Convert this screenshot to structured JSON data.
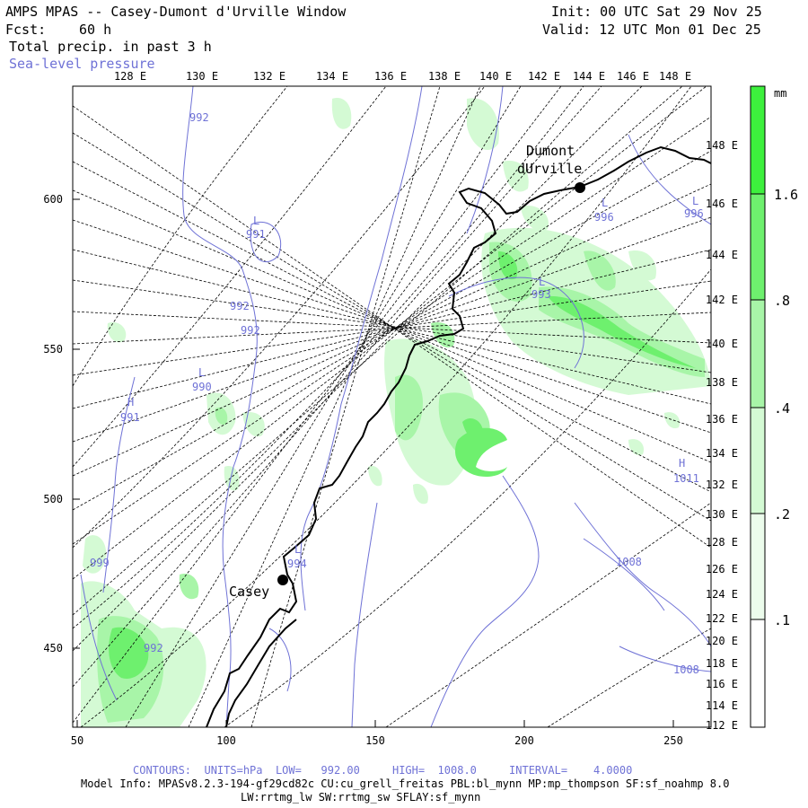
{
  "header": {
    "title": "AMPS MPAS -- Casey-Dumont d'Urville Window",
    "fcst_label": "Fcst:",
    "fcst_value": "60 h",
    "field1": "Total precip. in past 3 h",
    "field2": "Sea-level pressure",
    "init": "Init: 00 UTC Sat 29 Nov 25",
    "valid": "Valid: 12 UTC Mon 01 Dec 25"
  },
  "top_lon_labels": [
    "128 E",
    "130 E",
    "132 E",
    "134 E",
    "136 E",
    "138 E",
    "140 E",
    "142 E",
    "144 E",
    "146 E",
    "148 E"
  ],
  "right_lat_labels": [
    "148 E",
    "146 E",
    "144 E",
    "142 E",
    "140 E",
    "138 E",
    "136 E",
    "134 E",
    "132 E",
    "130 E",
    "128 E",
    "126 E",
    "124 E",
    "122 E",
    "120 E",
    "118 E",
    "116 E",
    "114 E",
    "112 E"
  ],
  "left_axis_labels": [
    "600",
    "550",
    "500",
    "450"
  ],
  "bottom_axis_labels": [
    "50",
    "100",
    "150",
    "200",
    "250"
  ],
  "places": {
    "dumont": [
      "Dumont",
      "dUrville"
    ],
    "casey": "Casey"
  },
  "pressure_labels": [
    {
      "t": "992"
    },
    {
      "t": "L"
    },
    {
      "t": "991"
    },
    {
      "t": "992"
    },
    {
      "t": "992"
    },
    {
      "t": "L"
    },
    {
      "t": "990"
    },
    {
      "t": "H"
    },
    {
      "t": "991"
    },
    {
      "t": "L"
    },
    {
      "t": "994"
    },
    {
      "t": "999"
    },
    {
      "t": "992"
    },
    {
      "t": "L"
    },
    {
      "t": "996"
    },
    {
      "t": "L"
    },
    {
      "t": "996"
    },
    {
      "t": "L"
    },
    {
      "t": "993"
    },
    {
      "t": "H"
    },
    {
      "t": "1011"
    },
    {
      "t": "1008"
    },
    {
      "t": "1008"
    }
  ],
  "colorbar": {
    "unit": "mm",
    "labels": [
      "1.6",
      ".8",
      ".4",
      ".2",
      ".1"
    ],
    "colors": [
      "#3df03d",
      "#6ef06e",
      "#a8f5a8",
      "#d4fad4",
      "#ecfcec"
    ]
  },
  "colors": {
    "contour": "#6f72d6",
    "grid": "#000000",
    "coast": "#000000"
  },
  "footer": {
    "contours": "CONTOURS:  UNITS=hPa  LOW=   992.00     HIGH=  1008.0     INTERVAL=    4.0000",
    "model_info": "Model Info: MPASv8.2.3-194-gf29cd82c CU:cu_grell_freitas PBL:bl_mynn MP:mp_thompson SF:sf_noahmp 8.0",
    "model_info2": "LW:rrtmg_lw SW:rrtmg_sw SFLAY:sf_mynn"
  }
}
